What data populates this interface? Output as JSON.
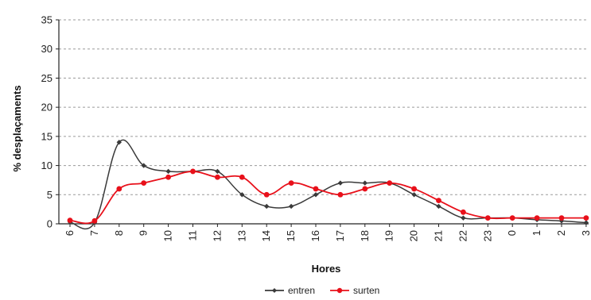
{
  "chart_data": {
    "type": "line",
    "title": "",
    "xlabel": "Hores",
    "ylabel": "% desplaçaments",
    "ylim": [
      0,
      35
    ],
    "yticks": [
      0,
      5,
      10,
      15,
      20,
      25,
      30,
      35
    ],
    "grid": "horizontal dashed",
    "legend_position": "bottom-center",
    "categories": [
      "6",
      "7",
      "8",
      "9",
      "10",
      "11",
      "12",
      "13",
      "14",
      "15",
      "16",
      "17",
      "18",
      "19",
      "20",
      "21",
      "22",
      "23",
      "0",
      "1",
      "2",
      "3"
    ],
    "series": [
      {
        "name": "entren",
        "color": "#3a3a3a",
        "marker": "diamond",
        "values": [
          0.3,
          0.2,
          14,
          10,
          9,
          9,
          9,
          5,
          3,
          3,
          5,
          7,
          7,
          7,
          5,
          3,
          1,
          1,
          1,
          0.7,
          0.5,
          0.2
        ]
      },
      {
        "name": "surten",
        "color": "#e8101a",
        "marker": "circle",
        "values": [
          0.6,
          0.5,
          6,
          7,
          8,
          9,
          8,
          8,
          5,
          7,
          6,
          5,
          6,
          7,
          6,
          4,
          2,
          1,
          1,
          1,
          1,
          1
        ]
      }
    ]
  }
}
